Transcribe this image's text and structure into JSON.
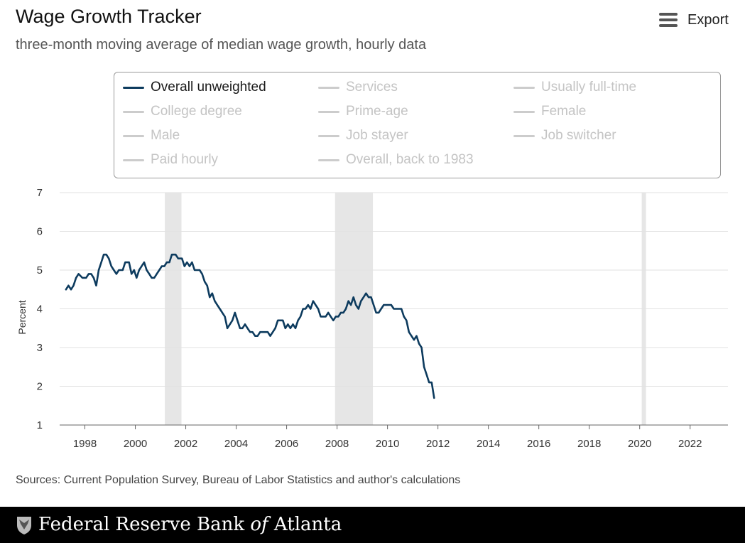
{
  "header": {
    "title": "Wage Growth Tracker",
    "subtitle": "three-month moving average of median wage growth, hourly data",
    "export_label": "Export",
    "export_icon": "menu-icon"
  },
  "legend": {
    "items": [
      {
        "label": "Overall unweighted",
        "active": true
      },
      {
        "label": "Services",
        "active": false
      },
      {
        "label": "Usually full-time",
        "active": false
      },
      {
        "label": "College degree",
        "active": false
      },
      {
        "label": "Prime-age",
        "active": false
      },
      {
        "label": "Female",
        "active": false
      },
      {
        "label": "Male",
        "active": false
      },
      {
        "label": "Job stayer",
        "active": false
      },
      {
        "label": "Job switcher",
        "active": false
      },
      {
        "label": "Paid hourly",
        "active": false
      },
      {
        "label": "Overall, back to 1983",
        "active": false
      }
    ]
  },
  "colors": {
    "series": "#0d3b5e",
    "inactive": "#cccccc",
    "recession": "#e6e6e6",
    "grid": "#e2e2e2"
  },
  "chart_data": {
    "type": "line",
    "title": "Wage Growth Tracker",
    "subtitle": "three-month moving average of median wage growth, hourly data",
    "xlabel": "",
    "ylabel": "Percent",
    "xlim": [
      1997.0,
      2023.5
    ],
    "ylim": [
      1,
      7
    ],
    "xticks": [
      1998,
      2000,
      2002,
      2004,
      2006,
      2008,
      2010,
      2012,
      2014,
      2016,
      2018,
      2020,
      2022
    ],
    "yticks": [
      1,
      2,
      3,
      4,
      5,
      6,
      7
    ],
    "grid": true,
    "recessions": [
      [
        2001.17,
        2001.83
      ],
      [
        2007.92,
        2009.42
      ],
      [
        2020.08,
        2020.25
      ]
    ],
    "series": [
      {
        "name": "Overall unweighted",
        "points": [
          [
            1997.25,
            4.5
          ],
          [
            1997.35,
            4.6
          ],
          [
            1997.45,
            4.5
          ],
          [
            1997.55,
            4.6
          ],
          [
            1997.65,
            4.8
          ],
          [
            1997.75,
            4.9
          ],
          [
            1997.9,
            4.8
          ],
          [
            1998.05,
            4.8
          ],
          [
            1998.15,
            4.9
          ],
          [
            1998.25,
            4.9
          ],
          [
            1998.35,
            4.8
          ],
          [
            1998.45,
            4.6
          ],
          [
            1998.55,
            5.0
          ],
          [
            1998.65,
            5.2
          ],
          [
            1998.75,
            5.4
          ],
          [
            1998.85,
            5.4
          ],
          [
            1998.95,
            5.3
          ],
          [
            1999.05,
            5.1
          ],
          [
            1999.15,
            5.0
          ],
          [
            1999.25,
            4.9
          ],
          [
            1999.35,
            5.0
          ],
          [
            1999.5,
            5.0
          ],
          [
            1999.6,
            5.2
          ],
          [
            1999.75,
            5.2
          ],
          [
            1999.85,
            4.9
          ],
          [
            1999.95,
            5.0
          ],
          [
            2000.05,
            4.8
          ],
          [
            2000.15,
            5.0
          ],
          [
            2000.25,
            5.1
          ],
          [
            2000.35,
            5.2
          ],
          [
            2000.45,
            5.0
          ],
          [
            2000.55,
            4.9
          ],
          [
            2000.65,
            4.8
          ],
          [
            2000.75,
            4.8
          ],
          [
            2000.85,
            4.9
          ],
          [
            2000.95,
            5.0
          ],
          [
            2001.05,
            5.1
          ],
          [
            2001.15,
            5.1
          ],
          [
            2001.25,
            5.2
          ],
          [
            2001.35,
            5.2
          ],
          [
            2001.45,
            5.4
          ],
          [
            2001.6,
            5.4
          ],
          [
            2001.7,
            5.3
          ],
          [
            2001.85,
            5.3
          ],
          [
            2001.95,
            5.1
          ],
          [
            2002.05,
            5.2
          ],
          [
            2002.15,
            5.1
          ],
          [
            2002.25,
            5.2
          ],
          [
            2002.35,
            5.0
          ],
          [
            2002.45,
            5.0
          ],
          [
            2002.55,
            5.0
          ],
          [
            2002.65,
            4.9
          ],
          [
            2002.75,
            4.7
          ],
          [
            2002.85,
            4.6
          ],
          [
            2002.95,
            4.3
          ],
          [
            2003.05,
            4.4
          ],
          [
            2003.15,
            4.2
          ],
          [
            2003.25,
            4.1
          ],
          [
            2003.35,
            4.0
          ],
          [
            2003.45,
            3.9
          ],
          [
            2003.55,
            3.8
          ],
          [
            2003.65,
            3.5
          ],
          [
            2003.75,
            3.6
          ],
          [
            2003.85,
            3.7
          ],
          [
            2003.95,
            3.9
          ],
          [
            2004.05,
            3.7
          ],
          [
            2004.15,
            3.5
          ],
          [
            2004.25,
            3.5
          ],
          [
            2004.35,
            3.6
          ],
          [
            2004.45,
            3.5
          ],
          [
            2004.55,
            3.4
          ],
          [
            2004.65,
            3.4
          ],
          [
            2004.75,
            3.3
          ],
          [
            2004.85,
            3.3
          ],
          [
            2004.95,
            3.4
          ],
          [
            2005.05,
            3.4
          ],
          [
            2005.15,
            3.4
          ],
          [
            2005.25,
            3.4
          ],
          [
            2005.35,
            3.3
          ],
          [
            2005.45,
            3.4
          ],
          [
            2005.55,
            3.5
          ],
          [
            2005.65,
            3.7
          ],
          [
            2005.75,
            3.7
          ],
          [
            2005.85,
            3.7
          ],
          [
            2005.95,
            3.5
          ],
          [
            2006.05,
            3.6
          ],
          [
            2006.15,
            3.5
          ],
          [
            2006.25,
            3.6
          ],
          [
            2006.35,
            3.5
          ],
          [
            2006.45,
            3.7
          ],
          [
            2006.55,
            3.8
          ],
          [
            2006.65,
            4.0
          ],
          [
            2006.75,
            4.0
          ],
          [
            2006.85,
            4.1
          ],
          [
            2006.95,
            4.0
          ],
          [
            2007.05,
            4.2
          ],
          [
            2007.15,
            4.1
          ],
          [
            2007.25,
            4.0
          ],
          [
            2007.35,
            3.8
          ],
          [
            2007.45,
            3.8
          ],
          [
            2007.55,
            3.8
          ],
          [
            2007.65,
            3.9
          ],
          [
            2007.75,
            3.8
          ],
          [
            2007.85,
            3.7
          ],
          [
            2007.95,
            3.8
          ],
          [
            2008.05,
            3.8
          ],
          [
            2008.15,
            3.9
          ],
          [
            2008.25,
            3.9
          ],
          [
            2008.35,
            4.0
          ],
          [
            2008.45,
            4.2
          ],
          [
            2008.55,
            4.1
          ],
          [
            2008.65,
            4.3
          ],
          [
            2008.75,
            4.1
          ],
          [
            2008.85,
            4.0
          ],
          [
            2008.95,
            4.2
          ],
          [
            2009.05,
            4.3
          ],
          [
            2009.15,
            4.4
          ],
          [
            2009.25,
            4.3
          ],
          [
            2009.35,
            4.3
          ],
          [
            2009.45,
            4.1
          ],
          [
            2009.55,
            3.9
          ],
          [
            2009.65,
            3.9
          ],
          [
            2009.75,
            4.0
          ],
          [
            2009.85,
            4.1
          ],
          [
            2009.95,
            4.1
          ],
          [
            2010.05,
            4.1
          ],
          [
            2010.15,
            4.1
          ],
          [
            2010.25,
            4.0
          ],
          [
            2010.35,
            4.0
          ],
          [
            2010.45,
            4.0
          ],
          [
            2010.55,
            4.0
          ],
          [
            2010.65,
            3.8
          ],
          [
            2010.75,
            3.7
          ],
          [
            2010.85,
            3.4
          ],
          [
            2010.95,
            3.3
          ],
          [
            2011.05,
            3.2
          ],
          [
            2011.15,
            3.3
          ],
          [
            2011.25,
            3.1
          ],
          [
            2011.35,
            3.0
          ],
          [
            2011.45,
            2.5
          ],
          [
            2011.55,
            2.3
          ],
          [
            2011.65,
            2.1
          ],
          [
            2011.75,
            2.1
          ],
          [
            2011.85,
            1.7
          ]
        ]
      }
    ]
  },
  "sources": "Sources: Current Population Survey, Bureau of Labor Statistics and author's calculations",
  "footer": {
    "org_pre": "Federal Reserve Bank ",
    "org_of": "of",
    "org_post": " Atlanta",
    "logo_icon": "eagle-seal-icon"
  }
}
